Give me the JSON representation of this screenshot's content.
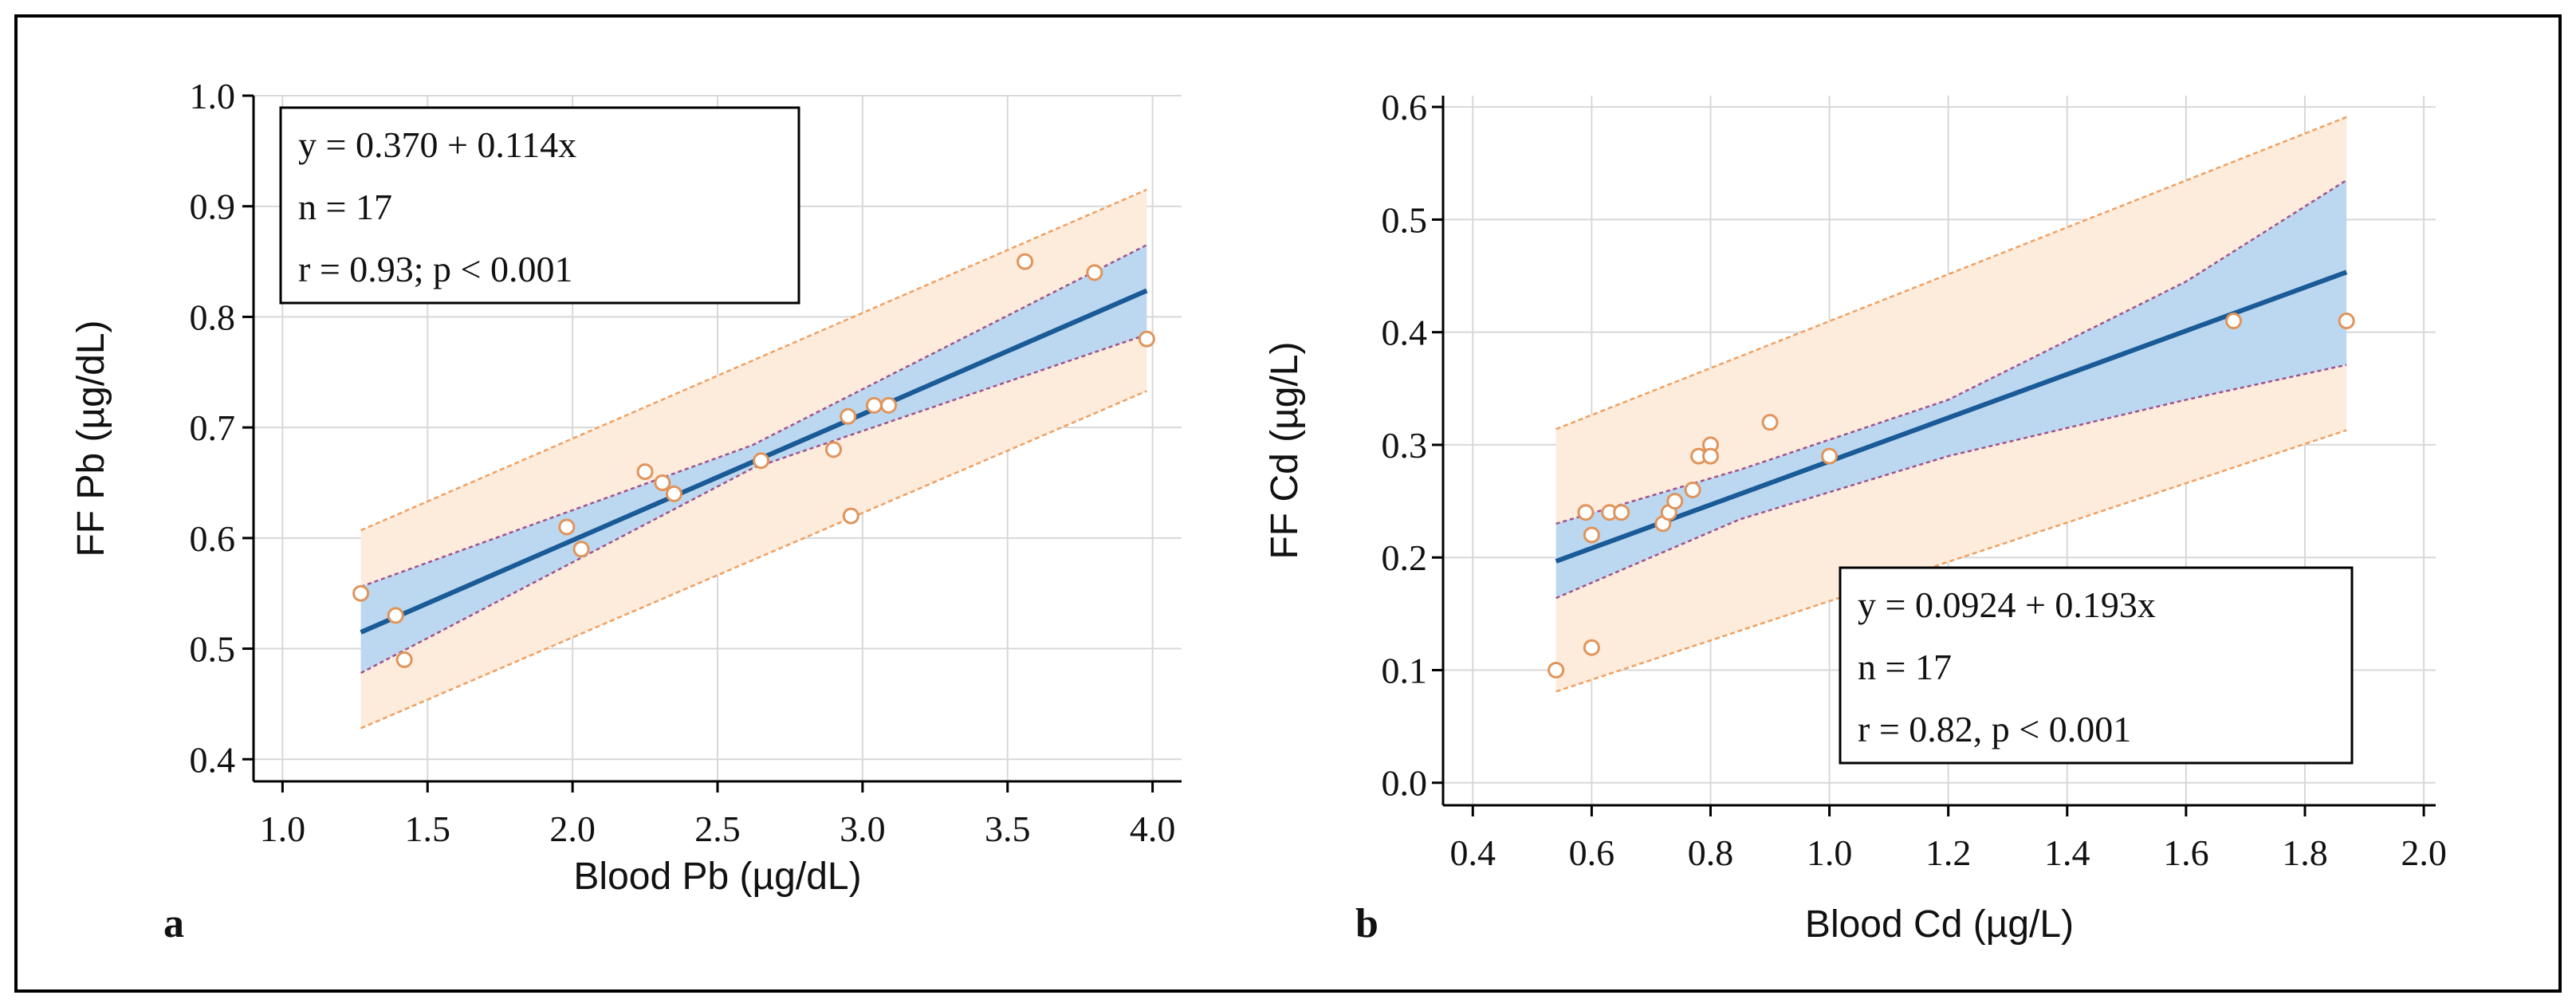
{
  "colors": {
    "frame": "#000000",
    "regression_line": "#1a5a96",
    "confidence_fill": "#bcd8f0",
    "confidence_edge": "#a0528c",
    "prediction_fill": "#fdebdc",
    "prediction_edge": "#f0a060",
    "point_stroke": "#e0945a",
    "grid": "#d8d8d8"
  },
  "chart_data": [
    {
      "type": "scatter",
      "panel_label": "a",
      "xlabel": "Blood Pb (µg/dL)",
      "ylabel": "FF Pb (µg/dL)",
      "xlim": [
        0.9,
        4.1
      ],
      "ylim": [
        0.38,
        1.0
      ],
      "xticks": [
        1.0,
        1.5,
        2.0,
        2.5,
        3.0,
        3.5,
        4.0
      ],
      "xtick_labels": [
        "1.0",
        "1.5",
        "2.0",
        "2.5",
        "3.0",
        "3.5",
        "4.0"
      ],
      "yticks": [
        0.4,
        0.5,
        0.6,
        0.7,
        0.8,
        0.9,
        1.0
      ],
      "ytick_labels": [
        "0.4",
        "0.5",
        "0.6",
        "0.7",
        "0.8",
        "0.9",
        "1.0"
      ],
      "grid": true,
      "legend_position": "top-left",
      "annotation": [
        "y = 0.370 + 0.114x",
        "n = 17",
        "r = 0.93; p < 0.001"
      ],
      "regression": {
        "intercept": 0.37,
        "slope": 0.114,
        "x_range": [
          1.27,
          3.98
        ]
      },
      "confidence_band": {
        "x": [
          1.27,
          2.62,
          3.98
        ],
        "lower": [
          0.478,
          0.663,
          0.784
        ],
        "upper": [
          0.556,
          0.684,
          0.865
        ]
      },
      "prediction_band": {
        "x": [
          1.27,
          3.98
        ],
        "lower": [
          0.428,
          0.733
        ],
        "upper": [
          0.607,
          0.915
        ]
      },
      "points": [
        {
          "x": 1.27,
          "y": 0.55
        },
        {
          "x": 1.39,
          "y": 0.53
        },
        {
          "x": 1.42,
          "y": 0.49
        },
        {
          "x": 1.98,
          "y": 0.61
        },
        {
          "x": 2.03,
          "y": 0.59
        },
        {
          "x": 2.25,
          "y": 0.66
        },
        {
          "x": 2.31,
          "y": 0.65
        },
        {
          "x": 2.35,
          "y": 0.64
        },
        {
          "x": 2.65,
          "y": 0.67
        },
        {
          "x": 2.9,
          "y": 0.68
        },
        {
          "x": 2.95,
          "y": 0.71
        },
        {
          "x": 2.96,
          "y": 0.62
        },
        {
          "x": 3.04,
          "y": 0.72
        },
        {
          "x": 3.09,
          "y": 0.72
        },
        {
          "x": 3.56,
          "y": 0.85
        },
        {
          "x": 3.8,
          "y": 0.84
        },
        {
          "x": 3.98,
          "y": 0.78
        }
      ]
    },
    {
      "type": "scatter",
      "panel_label": "b",
      "xlabel": "Blood Cd (µg/L)",
      "ylabel": "FF Cd (µg/L)",
      "xlim": [
        0.35,
        2.02
      ],
      "ylim": [
        -0.02,
        0.61
      ],
      "xticks": [
        0.4,
        0.6,
        0.8,
        1.0,
        1.2,
        1.4,
        1.6,
        1.8,
        2.0
      ],
      "xtick_labels": [
        "0.4",
        "0.6",
        "0.8",
        "1.0",
        "1.2",
        "1.4",
        "1.6",
        "1.8",
        "2.0"
      ],
      "yticks": [
        0.0,
        0.1,
        0.2,
        0.3,
        0.4,
        0.5,
        0.6
      ],
      "ytick_labels": [
        "0.0",
        "0.1",
        "0.2",
        "0.3",
        "0.4",
        "0.5",
        "0.6"
      ],
      "grid": true,
      "legend_position": "bottom-right",
      "annotation": [
        "y = 0.0924 + 0.193x",
        "n = 17",
        "r = 0.82, p < 0.001"
      ],
      "regression": {
        "intercept": 0.0924,
        "slope": 0.193,
        "x_range": [
          0.54,
          1.87
        ]
      },
      "confidence_band": {
        "x": [
          0.54,
          0.85,
          1.2,
          1.6,
          1.87
        ],
        "lower": [
          0.164,
          0.234,
          0.29,
          0.34,
          0.371
        ],
        "upper": [
          0.23,
          0.278,
          0.34,
          0.445,
          0.535
        ]
      },
      "prediction_band": {
        "x": [
          0.54,
          1.87
        ],
        "lower": [
          0.081,
          0.313
        ],
        "upper": [
          0.314,
          0.591
        ]
      },
      "points": [
        {
          "x": 0.54,
          "y": 0.1
        },
        {
          "x": 0.59,
          "y": 0.24
        },
        {
          "x": 0.6,
          "y": 0.22
        },
        {
          "x": 0.6,
          "y": 0.12
        },
        {
          "x": 0.63,
          "y": 0.24
        },
        {
          "x": 0.65,
          "y": 0.24
        },
        {
          "x": 0.72,
          "y": 0.23
        },
        {
          "x": 0.73,
          "y": 0.24
        },
        {
          "x": 0.74,
          "y": 0.25
        },
        {
          "x": 0.77,
          "y": 0.26
        },
        {
          "x": 0.78,
          "y": 0.29
        },
        {
          "x": 0.8,
          "y": 0.3
        },
        {
          "x": 0.8,
          "y": 0.29
        },
        {
          "x": 0.9,
          "y": 0.32
        },
        {
          "x": 1.68,
          "y": 0.41
        },
        {
          "x": 1.87,
          "y": 0.41
        },
        {
          "x": 1.0,
          "y": 0.29
        }
      ]
    }
  ]
}
